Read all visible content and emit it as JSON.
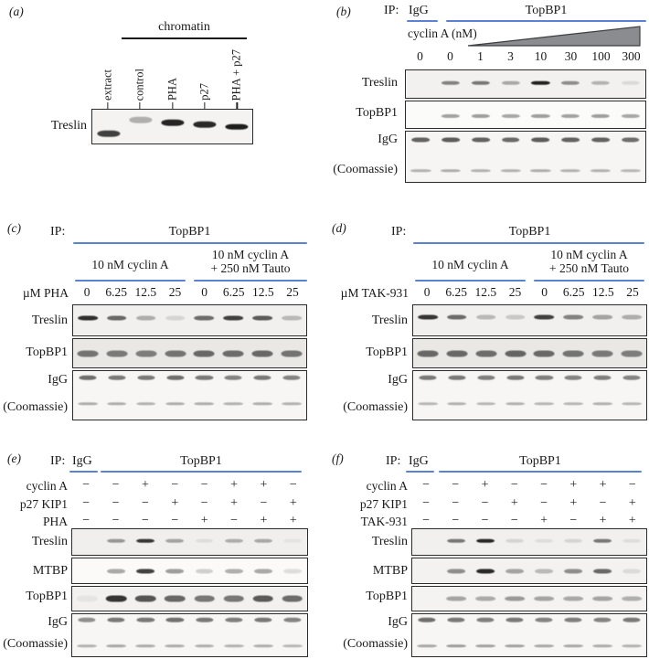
{
  "colors": {
    "accent-underline": "#5a82d2",
    "wedge-fill": "#8a8c90",
    "wedge-stroke": "#3c3e42",
    "band": "#141414",
    "box-border": "#2b2b2b"
  },
  "panels": {
    "a": {
      "tag": "(a)",
      "group_label": "chromatin",
      "row_label": "Treslin",
      "lane_labels": [
        "extract",
        "control",
        "PHA",
        "p27",
        "PHA + p27"
      ],
      "bands": [
        {
          "i": 0.8,
          "y": 0.71
        },
        {
          "i": 0.3,
          "y": 0.3
        },
        {
          "i": 0.92,
          "y": 0.38
        },
        {
          "i": 0.9,
          "y": 0.44
        },
        {
          "i": 0.96,
          "y": 0.5
        }
      ]
    },
    "b": {
      "tag": "(b)",
      "ip_label": "IP:",
      "ip_igg": "IgG",
      "ip_topbp1": "TopBP1",
      "titration_label": "cyclin A (nM)",
      "doses": [
        "0",
        "0",
        "1",
        "3",
        "10",
        "30",
        "100",
        "300"
      ],
      "row_labels": {
        "treslin": "Treslin",
        "topbp1": "TopBP1",
        "igg": "IgG",
        "coomassie": "(Coomassie)"
      },
      "bands": {
        "treslin": [
          0,
          0.5,
          0.55,
          0.33,
          0.95,
          0.45,
          0.28,
          0.1
        ],
        "topbp1": [
          0,
          0.38,
          0.4,
          0.36,
          0.4,
          0.38,
          0.4,
          0.36
        ],
        "igg": [
          0.65,
          0.68,
          0.65,
          0.62,
          0.68,
          0.65,
          0.65,
          0.6
        ],
        "coomassie": [
          0.3,
          0.32,
          0.3,
          0.3,
          0.32,
          0.3,
          0.3,
          0.28
        ]
      }
    },
    "c": {
      "tag": "(c)",
      "ip_label": "IP:",
      "ip_topbp1": "TopBP1",
      "group1_label": "10 nM cyclin A",
      "group2_line1": "10 nM cyclin A",
      "group2_line2": "+ 250 nM Tauto",
      "dose_label": "µM PHA",
      "doses": [
        "0",
        "6.25",
        "12.5",
        "25",
        "0",
        "6.25",
        "12.5",
        "25"
      ],
      "row_labels": {
        "treslin": "Treslin",
        "topbp1": "TopBP1",
        "igg": "IgG",
        "coomassie": "(Coomassie)"
      },
      "bands": {
        "treslin": [
          0.88,
          0.62,
          0.3,
          0.12,
          0.6,
          0.8,
          0.68,
          0.25
        ],
        "topbp1": [
          0.55,
          0.52,
          0.5,
          0.55,
          0.6,
          0.58,
          0.6,
          0.55
        ],
        "igg": [
          0.6,
          0.55,
          0.55,
          0.6,
          0.55,
          0.5,
          0.55,
          0.5
        ],
        "coomassie": [
          0.32,
          0.32,
          0.3,
          0.32,
          0.32,
          0.3,
          0.32,
          0.3
        ]
      }
    },
    "d": {
      "tag": "(d)",
      "ip_label": "IP:",
      "ip_topbp1": "TopBP1",
      "group1_label": "10 nM cyclin A",
      "group2_line1": "10 nM cyclin A",
      "group2_line2": "+ 250 nM Tauto",
      "dose_label": "µM TAK-931",
      "doses": [
        "0",
        "6.25",
        "12.5",
        "25",
        "0",
        "6.25",
        "12.5",
        "25"
      ],
      "row_labels": {
        "treslin": "Treslin",
        "topbp1": "TopBP1",
        "igg": "IgG",
        "coomassie": "(Coomassie)"
      },
      "bands": {
        "treslin": [
          0.85,
          0.6,
          0.25,
          0.18,
          0.8,
          0.5,
          0.35,
          0.3
        ],
        "topbp1": [
          0.6,
          0.6,
          0.58,
          0.62,
          0.6,
          0.55,
          0.52,
          0.5
        ],
        "igg": [
          0.55,
          0.55,
          0.52,
          0.55,
          0.52,
          0.5,
          0.52,
          0.5
        ],
        "coomassie": [
          0.28,
          0.3,
          0.28,
          0.3,
          0.28,
          0.28,
          0.3,
          0.28
        ]
      }
    },
    "e": {
      "tag": "(e)",
      "ip_label": "IP:",
      "ip_igg": "IgG",
      "ip_topbp1": "TopBP1",
      "conditions": [
        {
          "label": "cyclin A",
          "signs": [
            "−",
            "−",
            "+",
            "−",
            "−",
            "+",
            "+",
            "−"
          ]
        },
        {
          "label": "p27 KIP1",
          "signs": [
            "−",
            "−",
            "−",
            "+",
            "−",
            "+",
            "−",
            "+"
          ]
        },
        {
          "label": "PHA",
          "signs": [
            "−",
            "−",
            "−",
            "−",
            "+",
            "−",
            "+",
            "+"
          ]
        }
      ],
      "row_labels": {
        "treslin": "Treslin",
        "mtbp": "MTBP",
        "topbp1": "TopBP1",
        "igg": "IgG",
        "coomassie": "(Coomassie)"
      },
      "bands": {
        "treslin": [
          0,
          0.4,
          0.85,
          0.35,
          0.08,
          0.3,
          0.32,
          0.05
        ],
        "mtbp": [
          0,
          0.35,
          0.8,
          0.4,
          0.18,
          0.32,
          0.35,
          0.12
        ],
        "topbp1": [
          0.05,
          0.85,
          0.7,
          0.62,
          0.55,
          0.55,
          0.68,
          0.6
        ],
        "igg": [
          0.45,
          0.55,
          0.55,
          0.58,
          0.55,
          0.52,
          0.55,
          0.5
        ],
        "coomassie": [
          0.3,
          0.35,
          0.33,
          0.33,
          0.32,
          0.3,
          0.32,
          0.28
        ]
      }
    },
    "f": {
      "tag": "(f)",
      "ip_label": "IP:",
      "ip_igg": "IgG",
      "ip_topbp1": "TopBP1",
      "conditions": [
        {
          "label": "cyclin A",
          "signs": [
            "−",
            "−",
            "+",
            "−",
            "−",
            "+",
            "+",
            "−"
          ]
        },
        {
          "label": "p27 KIP1",
          "signs": [
            "−",
            "−",
            "−",
            "+",
            "−",
            "+",
            "−",
            "+"
          ]
        },
        {
          "label": "TAK-931",
          "signs": [
            "−",
            "−",
            "−",
            "−",
            "+",
            "−",
            "+",
            "+"
          ]
        }
      ],
      "row_labels": {
        "treslin": "Treslin",
        "mtbp": "MTBP",
        "topbp1": "TopBP1",
        "igg": "IgG",
        "coomassie": "(Coomassie)"
      },
      "bands": {
        "treslin": [
          0,
          0.55,
          0.92,
          0.12,
          0.08,
          0.12,
          0.55,
          0.08
        ],
        "mtbp": [
          0,
          0.45,
          0.9,
          0.35,
          0.25,
          0.45,
          0.62,
          0.1
        ],
        "topbp1": [
          0,
          0.35,
          0.32,
          0.4,
          0.35,
          0.33,
          0.35,
          0.3
        ],
        "igg": [
          0.6,
          0.55,
          0.52,
          0.55,
          0.5,
          0.52,
          0.5,
          0.55
        ],
        "coomassie": [
          0.35,
          0.4,
          0.38,
          0.38,
          0.35,
          0.35,
          0.33,
          0.3
        ]
      }
    }
  }
}
